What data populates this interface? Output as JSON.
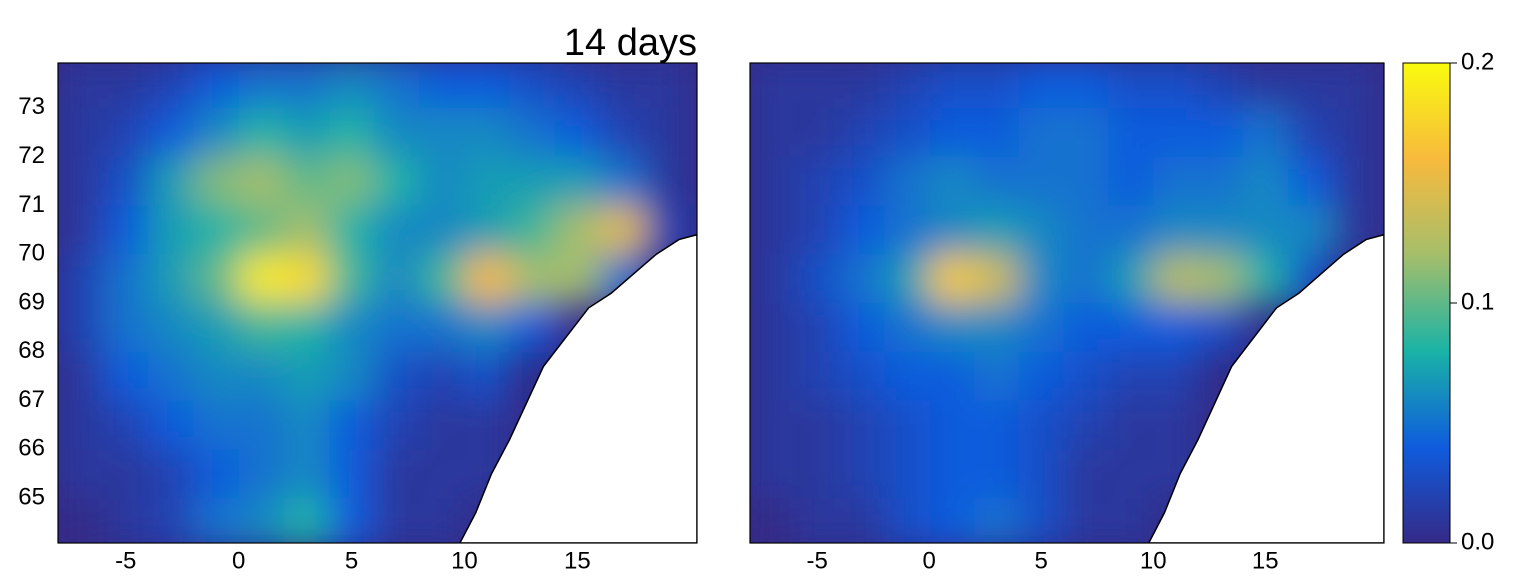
{
  "chart_data": [
    {
      "type": "heatmap",
      "title": "14 days",
      "x": [
        -7,
        -5,
        -3,
        -1,
        1,
        3,
        5,
        7,
        9,
        11,
        13,
        15,
        17,
        19
      ],
      "y": [
        73.5,
        72.5,
        71.5,
        70.5,
        69.5,
        68.5,
        67.5,
        66.5,
        65.5,
        64.5
      ],
      "values": [
        [
          0.01,
          0.01,
          0.02,
          0.04,
          0.05,
          0.05,
          0.06,
          0.05,
          0.04,
          0.04,
          0.03,
          0.02,
          0.01,
          0.01
        ],
        [
          0.01,
          0.02,
          0.04,
          0.06,
          0.08,
          0.07,
          0.08,
          0.06,
          0.06,
          0.06,
          0.05,
          0.04,
          0.02,
          0.01
        ],
        [
          0.01,
          0.03,
          0.07,
          0.11,
          0.12,
          0.1,
          0.11,
          0.08,
          0.06,
          0.07,
          0.07,
          0.07,
          0.05,
          0.01
        ],
        [
          0.01,
          0.04,
          0.07,
          0.08,
          0.1,
          0.12,
          0.08,
          0.06,
          0.06,
          0.07,
          0.09,
          0.12,
          0.15,
          0.02
        ],
        [
          0.02,
          0.05,
          0.07,
          0.1,
          0.19,
          0.18,
          0.09,
          0.06,
          0.09,
          0.16,
          0.12,
          0.12,
          0.05,
          null
        ],
        [
          0.02,
          0.05,
          0.06,
          0.07,
          0.09,
          0.08,
          0.06,
          0.05,
          0.05,
          0.06,
          0.04,
          null,
          null,
          null
        ],
        [
          0.01,
          0.04,
          0.05,
          0.06,
          0.06,
          0.07,
          0.06,
          0.03,
          0.02,
          0.03,
          null,
          null,
          null,
          null
        ],
        [
          0.01,
          0.02,
          0.04,
          0.05,
          0.05,
          0.06,
          0.04,
          0.02,
          0.01,
          0.01,
          null,
          null,
          null,
          null
        ],
        [
          0.01,
          0.01,
          0.02,
          0.04,
          0.05,
          0.06,
          0.04,
          0.01,
          0.01,
          0.01,
          null,
          null,
          null,
          null
        ],
        [
          0,
          0.01,
          0.02,
          0.05,
          0.06,
          0.08,
          0.04,
          0.01,
          0.01,
          null,
          null,
          null,
          null,
          null
        ]
      ],
      "xlim": [
        -8,
        20.3
      ],
      "ylim": [
        64.08,
        73.92
      ],
      "xticks": [
        -5,
        0,
        5,
        10,
        15
      ],
      "yticks": [
        65,
        66,
        67,
        68,
        69,
        70,
        71,
        72,
        73
      ],
      "zlim": [
        0,
        0.2
      ],
      "colormap": [
        "#352a87",
        "#0f5cdd",
        "#1ab3a6",
        "#a5be6a",
        "#f8ba3d",
        "#f9fb0e"
      ]
    },
    {
      "type": "heatmap",
      "x": [
        -7,
        -5,
        -3,
        -1,
        1,
        3,
        5,
        7,
        9,
        11,
        13,
        15,
        17,
        19
      ],
      "y": [
        73.5,
        72.5,
        71.5,
        70.5,
        69.5,
        68.5,
        67.5,
        66.5,
        65.5,
        64.5
      ],
      "values": [
        [
          0.01,
          0.01,
          0.01,
          0.02,
          0.03,
          0.03,
          0.04,
          0.04,
          0.03,
          0.03,
          0.02,
          0.01,
          0.01,
          0.01
        ],
        [
          0.01,
          0.01,
          0.02,
          0.03,
          0.04,
          0.04,
          0.05,
          0.05,
          0.04,
          0.04,
          0.04,
          0.05,
          0.02,
          0.01
        ],
        [
          0.01,
          0.02,
          0.03,
          0.05,
          0.06,
          0.05,
          0.05,
          0.05,
          0.04,
          0.05,
          0.05,
          0.06,
          0.04,
          0.01
        ],
        [
          0.01,
          0.02,
          0.04,
          0.05,
          0.06,
          0.07,
          0.06,
          0.05,
          0.05,
          0.06,
          0.06,
          0.06,
          0.06,
          0.01
        ],
        [
          0.01,
          0.03,
          0.05,
          0.07,
          0.17,
          0.14,
          0.06,
          0.05,
          0.07,
          0.13,
          0.12,
          0.08,
          0.03,
          null
        ],
        [
          0.01,
          0.02,
          0.04,
          0.05,
          0.06,
          0.06,
          0.05,
          0.04,
          0.04,
          0.04,
          0.03,
          null,
          null,
          null
        ],
        [
          0.01,
          0.02,
          0.03,
          0.04,
          0.04,
          0.05,
          0.04,
          0.03,
          0.02,
          0.02,
          null,
          null,
          null,
          null
        ],
        [
          0.01,
          0.01,
          0.02,
          0.03,
          0.04,
          0.04,
          0.03,
          0.02,
          0.01,
          0.01,
          null,
          null,
          null,
          null
        ],
        [
          0.01,
          0.01,
          0.02,
          0.03,
          0.04,
          0.04,
          0.03,
          0.01,
          0.01,
          0.01,
          null,
          null,
          null,
          null
        ],
        [
          0,
          0.01,
          0.01,
          0.03,
          0.04,
          0.05,
          0.03,
          0.01,
          0.01,
          null,
          null,
          null,
          null,
          null
        ]
      ],
      "xlim": [
        -8,
        20.3
      ],
      "ylim": [
        64.08,
        73.92
      ],
      "xticks": [
        -5,
        0,
        5,
        10,
        15
      ],
      "zlim": [
        0,
        0.2
      ],
      "zticks": [
        {
          "value": 0,
          "label": "0.0"
        },
        0.1,
        0.2
      ],
      "colormap": [
        "#352a87",
        "#0f5cdd",
        "#1ab3a6",
        "#a5be6a",
        "#f8ba3d",
        "#f9fb0e"
      ]
    }
  ]
}
